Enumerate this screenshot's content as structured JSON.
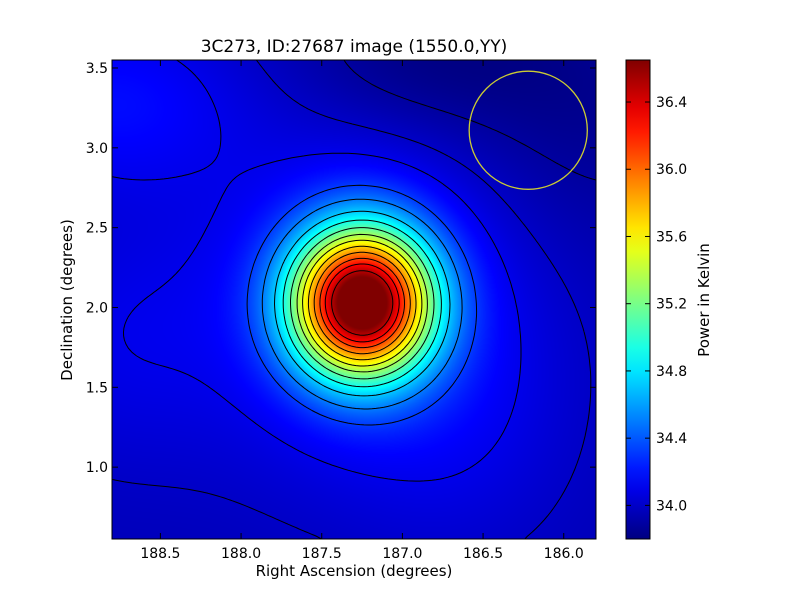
{
  "chart_data": {
    "type": "heatmap",
    "title": "3C273, ID:27687 image (1550.0,YY)",
    "xlabel": "Right Ascension (degrees)",
    "ylabel": "Declination (degrees)",
    "x_inverted": true,
    "xlim": [
      188.8,
      185.8
    ],
    "ylim": [
      0.55,
      3.55
    ],
    "x_ticks": [
      188.5,
      188.0,
      187.5,
      187.0,
      186.5,
      186.0
    ],
    "x_tick_labels": [
      "188.5",
      "188.0",
      "187.5",
      "187.0",
      "186.5",
      "186.0"
    ],
    "y_ticks": [
      1.0,
      1.5,
      2.0,
      2.5,
      3.0,
      3.5
    ],
    "y_tick_labels": [
      "1.0",
      "1.5",
      "2.0",
      "2.5",
      "3.0",
      "3.5"
    ],
    "colormap": "jet",
    "colorbar": {
      "label": "Power in Kelvin",
      "range": [
        33.8,
        36.65
      ],
      "ticks": [
        34.0,
        34.4,
        34.8,
        35.2,
        35.6,
        36.0,
        36.4
      ],
      "tick_labels": [
        "34.0",
        "34.4",
        "34.8",
        "35.2",
        "35.6",
        "36.0",
        "36.4"
      ]
    },
    "field": {
      "background": 33.95,
      "sources": [
        {
          "ra": 187.25,
          "dec": 2.03,
          "peak_above_background": 2.72,
          "sigma_ra": 0.3,
          "sigma_dec": 0.32
        },
        {
          "ra": 187.25,
          "dec": 2.03,
          "peak_above_background": 0.3,
          "sigma_ra": 0.7,
          "sigma_dec": 0.75
        },
        {
          "ra": 188.8,
          "dec": 3.3,
          "peak_above_background": 0.22,
          "sigma_ra": 0.6,
          "sigma_dec": 0.4
        },
        {
          "ra": 188.8,
          "dec": 1.8,
          "peak_above_background": 0.12,
          "sigma_ra": 0.5,
          "sigma_dec": 0.6
        },
        {
          "ra": 186.6,
          "dec": 1.2,
          "peak_above_background": 0.08,
          "sigma_ra": 0.5,
          "sigma_dec": 0.6
        },
        {
          "ra": 186.9,
          "dec": 3.55,
          "peak_above_background": -0.14,
          "sigma_ra": 0.6,
          "sigma_dec": 0.35
        },
        {
          "ra": 185.9,
          "dec": 3.2,
          "peak_above_background": -0.1,
          "sigma_ra": 0.6,
          "sigma_dec": 0.6
        }
      ]
    },
    "contour_levels": [
      33.89,
      34.0,
      34.1,
      34.32,
      34.5,
      34.72,
      34.92,
      35.12,
      35.32,
      35.5,
      35.7,
      35.9,
      36.1,
      36.28,
      36.48
    ],
    "contour_color": "#000000",
    "beam_circle": {
      "ra": 186.22,
      "dec": 3.11,
      "radius_deg": 0.37,
      "color": "#cccc33"
    }
  }
}
